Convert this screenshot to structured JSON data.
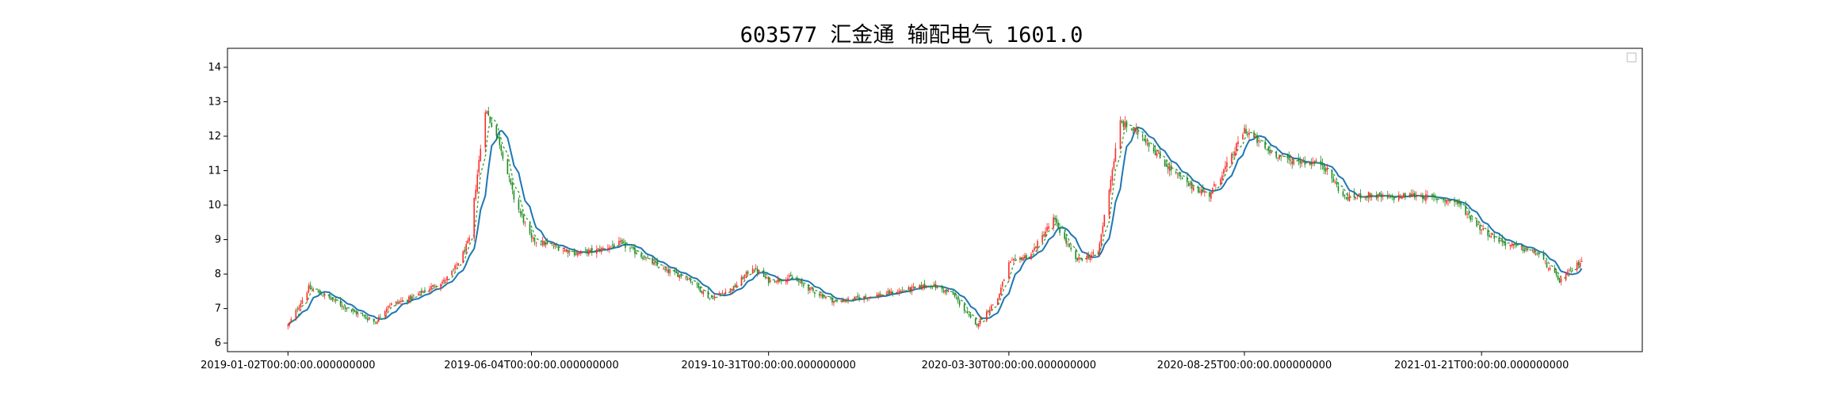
{
  "chart_data": {
    "type": "candlestick",
    "title": "603577 汇金通 输配电气 1601.0",
    "xlabel": "",
    "ylabel": "",
    "x_ticks": [
      "2019-01-02T00:00:00.000000000",
      "2019-06-04T00:00:00.000000000",
      "2019-10-31T00:00:00.000000000",
      "2020-03-30T00:00:00.000000000",
      "2020-08-25T00:00:00.000000000",
      "2021-01-21T00:00:00.000000000"
    ],
    "y_ticks": [
      6,
      7,
      8,
      9,
      10,
      11,
      12,
      13,
      14
    ],
    "xlim": [
      "2018-11-25",
      "2021-05-02"
    ],
    "ylim": [
      5.75,
      14.55
    ],
    "grid": false,
    "legend": {
      "position": "top-right",
      "entries": []
    },
    "colors": {
      "up": "#ff2a2a",
      "down": "#1f8a1f",
      "ma": "#1f77b4",
      "ma_dash": "#2ca02c"
    },
    "close_series": {
      "dates": [
        "2019-01-02",
        "2019-01-15",
        "2019-01-28",
        "2019-02-12",
        "2019-02-26",
        "2019-03-06",
        "2019-03-20",
        "2019-04-01",
        "2019-04-10",
        "2019-04-16",
        "2019-04-22",
        "2019-04-26",
        "2019-05-06",
        "2019-05-15",
        "2019-05-24",
        "2019-06-04",
        "2019-06-18",
        "2019-07-02",
        "2019-07-16",
        "2019-07-30",
        "2019-08-13",
        "2019-08-27",
        "2019-09-10",
        "2019-09-24",
        "2019-10-09",
        "2019-10-21",
        "2019-10-31",
        "2019-11-14",
        "2019-11-28",
        "2019-12-12",
        "2019-12-26",
        "2020-01-09",
        "2020-01-21",
        "2020-02-10",
        "2020-02-24",
        "2020-03-09",
        "2020-03-23",
        "2020-03-30",
        "2020-04-13",
        "2020-04-27",
        "2020-05-11",
        "2020-05-25",
        "2020-06-08",
        "2020-06-22",
        "2020-07-06",
        "2020-07-20",
        "2020-08-03",
        "2020-08-17",
        "2020-08-25",
        "2020-09-08",
        "2020-09-22",
        "2020-10-13",
        "2020-10-27",
        "2020-11-10",
        "2020-11-24",
        "2020-12-08",
        "2020-12-22",
        "2021-01-05",
        "2021-01-21",
        "2021-02-04",
        "2021-02-25",
        "2021-03-11",
        "2021-03-25"
      ],
      "close": [
        6.5,
        7.6,
        7.3,
        6.9,
        6.6,
        7.1,
        7.3,
        7.6,
        7.8,
        8.1,
        8.6,
        9.0,
        12.8,
        11.8,
        10.2,
        9.0,
        8.8,
        8.6,
        8.7,
        8.9,
        8.5,
        8.1,
        7.9,
        7.3,
        7.6,
        8.2,
        7.8,
        7.9,
        7.5,
        7.2,
        7.3,
        7.4,
        7.5,
        7.7,
        7.4,
        6.5,
        7.3,
        8.3,
        8.6,
        9.6,
        8.4,
        8.6,
        12.4,
        12.0,
        11.2,
        10.6,
        10.3,
        11.4,
        12.2,
        11.6,
        11.3,
        11.2,
        10.2,
        10.3,
        10.2,
        10.3,
        10.2,
        10.1,
        9.3,
        8.9,
        8.6,
        7.8,
        8.4
      ]
    }
  }
}
